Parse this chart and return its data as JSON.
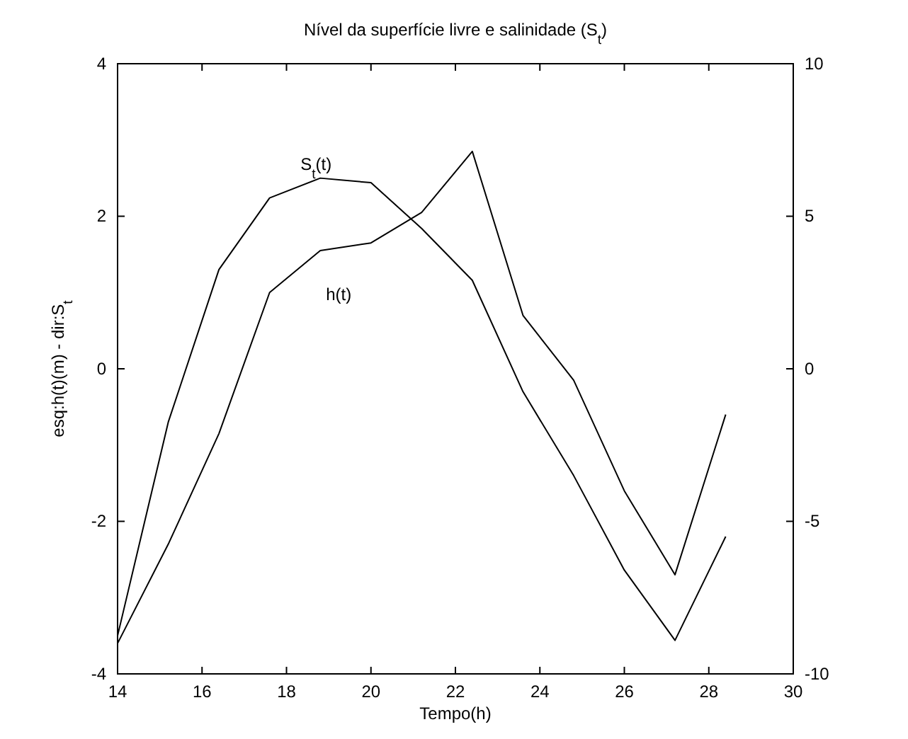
{
  "chart_data": {
    "type": "line",
    "title": "Nível da superfície livre e salinidade (S$_{t}$)",
    "xlabel": "Tempo(h)",
    "ylabel": "esq:h(t)(m) - dir:S$_{t}$",
    "x": [
      14,
      15.2,
      16.4,
      17.6,
      18.8,
      20,
      21.2,
      22.4,
      23.6,
      24.8,
      26,
      27.2,
      28.4
    ],
    "series": [
      {
        "name": "S$_{t}$(t)",
        "color": "#000000",
        "axis": "y2",
        "values": [
          -8.75,
          -1.75,
          3.25,
          5.6,
          6.25,
          6.1,
          4.6,
          2.9,
          -0.75,
          -3.5,
          -6.6,
          -8.9,
          -5.5
        ]
      },
      {
        "name": "h(t)",
        "color": "#000000",
        "values": [
          -3.6,
          -2.3,
          -0.85,
          1.0,
          1.55,
          1.65,
          2.05,
          2.85,
          0.7,
          -0.15,
          -1.6,
          -2.7,
          -0.6
        ]
      }
    ],
    "xlim": [
      14,
      30
    ],
    "xticks": [
      14,
      16,
      18,
      20,
      22,
      24,
      26,
      28,
      30
    ],
    "ylim": [
      -4,
      4
    ],
    "yticks": [
      -4,
      -2,
      0,
      2,
      4
    ],
    "y2lim": [
      -10,
      10
    ],
    "y2ticks": [
      -10,
      -5,
      0,
      5,
      10
    ],
    "grid": false,
    "legend": false,
    "marker": "none",
    "line_style": "solid"
  }
}
